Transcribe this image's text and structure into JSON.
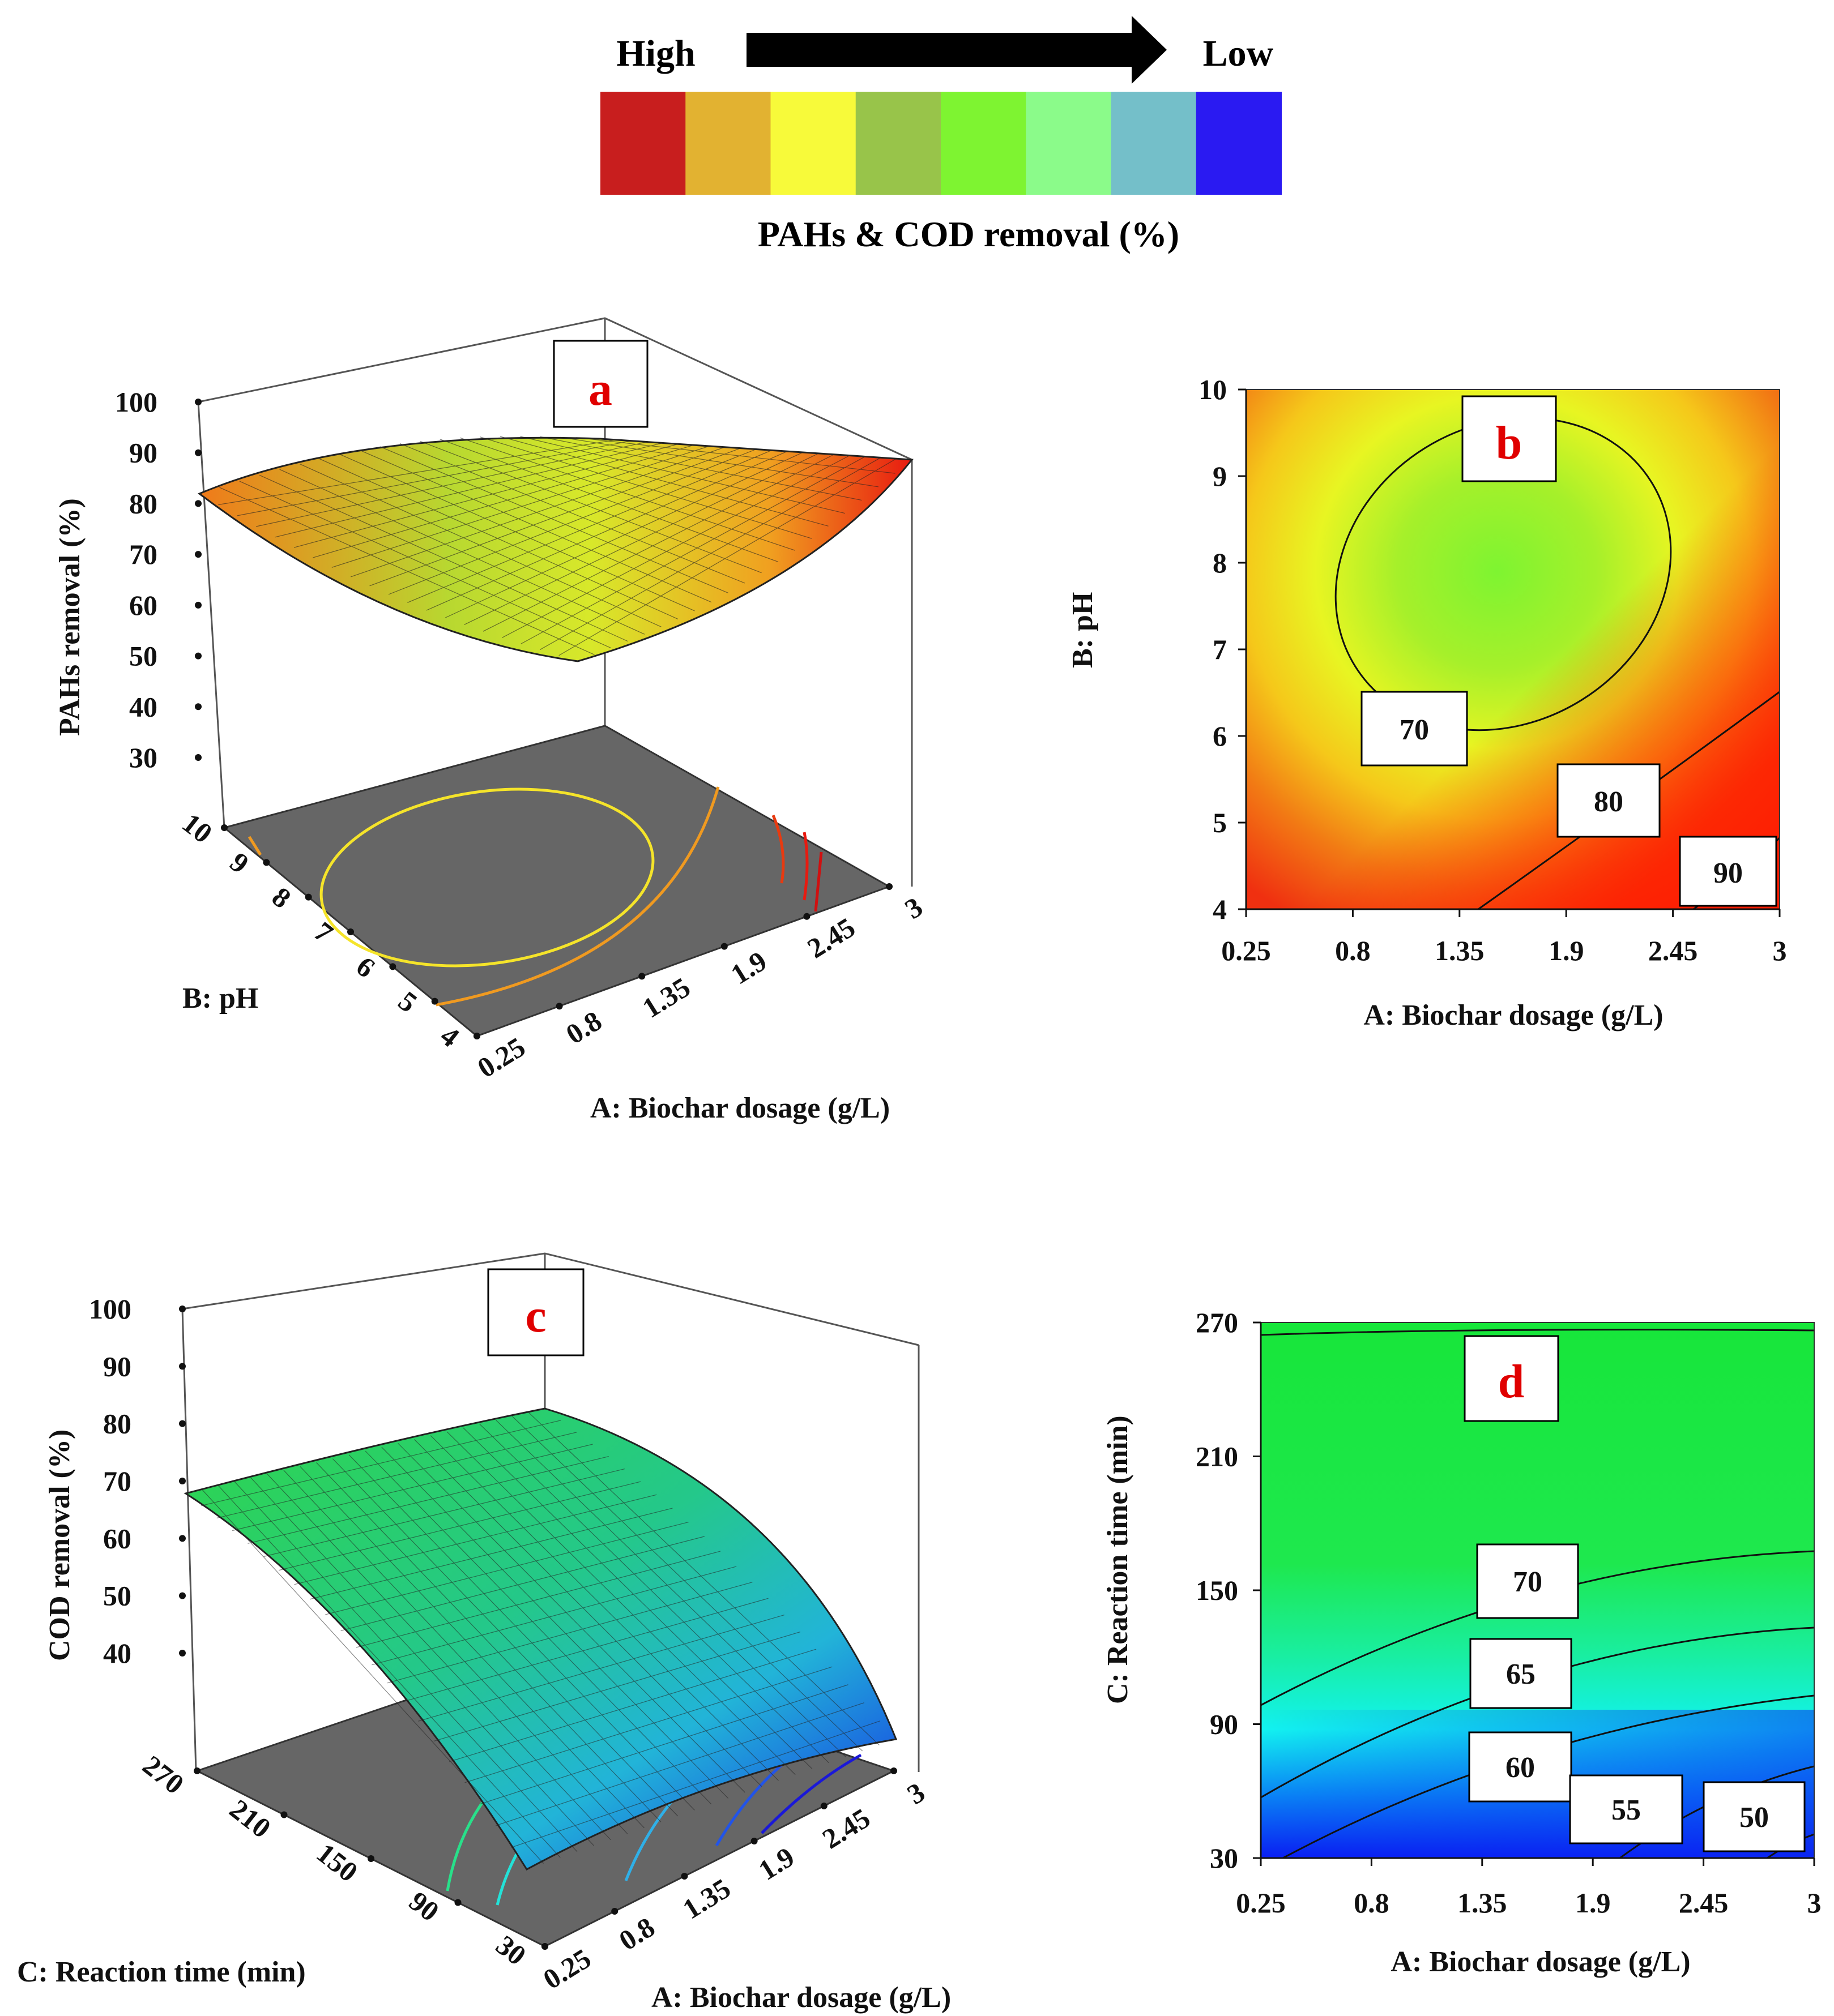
{
  "legend": {
    "high_label": "High",
    "low_label": "Low",
    "title": "PAHs & COD removal (%)",
    "colors": [
      "#c81e1e",
      "#e2b231",
      "#f7fa3a",
      "#98c44a",
      "#7ef431",
      "#8bfb8a",
      "#74bfc9",
      "#2a1af2"
    ]
  },
  "chart_data": [
    {
      "id": "a",
      "type": "surface3d",
      "panel_label": "a",
      "zlabel": "PAHs  removal (%)",
      "xlabel": "A: Biochar  dosage (g/L)",
      "ylabel": "B: pH",
      "x_ticks": [
        "0.25",
        "0.8",
        "1.35",
        "1.9",
        "2.45",
        "3"
      ],
      "y_ticks": [
        "10",
        "9",
        "8",
        "7",
        "6",
        "5",
        "4"
      ],
      "z_ticks": [
        "100",
        "90",
        "80",
        "70",
        "60",
        "50",
        "40",
        "30"
      ],
      "zlim": [
        30,
        100
      ],
      "xlim": [
        0.25,
        3
      ],
      "ylim": [
        4,
        10
      ],
      "surface_min": 67,
      "surface_max": 92
    },
    {
      "id": "b",
      "type": "contour",
      "panel_label": "b",
      "xlabel": "A: Biochar  dosage (g/L)",
      "ylabel": "B: pH",
      "x_ticks": [
        "0.25",
        "0.8",
        "1.35",
        "1.9",
        "2.45",
        "3"
      ],
      "y_ticks": [
        "10",
        "9",
        "8",
        "7",
        "6",
        "5",
        "4"
      ],
      "xlim": [
        0.25,
        3
      ],
      "ylim": [
        4,
        10
      ],
      "contour_levels": [
        70,
        80,
        90
      ],
      "contour_labels": [
        "70",
        "80",
        "90"
      ]
    },
    {
      "id": "c",
      "type": "surface3d",
      "panel_label": "c",
      "zlabel": "COD  removal (%)",
      "xlabel": "A: Biochar  dosage (g/L)",
      "ylabel": "C: Reaction time (min)",
      "x_ticks": [
        "0.25",
        "0.8",
        "1.35",
        "1.9",
        "2.45",
        "3"
      ],
      "y_ticks": [
        "270",
        "210",
        "150",
        "90",
        "30"
      ],
      "z_ticks": [
        "100",
        "90",
        "80",
        "70",
        "60",
        "50",
        "40"
      ],
      "zlim": [
        40,
        100
      ],
      "xlim": [
        0.25,
        3
      ],
      "ylim": [
        30,
        270
      ],
      "surface_min": 47,
      "surface_max": 78
    },
    {
      "id": "d",
      "type": "contour",
      "panel_label": "d",
      "xlabel": "A: Biochar  dosage (g/L)",
      "ylabel": "C: Reaction time (min)",
      "x_ticks": [
        "0.25",
        "0.8",
        "1.35",
        "1.9",
        "2.45",
        "3"
      ],
      "y_ticks": [
        "270",
        "210",
        "150",
        "90",
        "30"
      ],
      "xlim": [
        0.25,
        3
      ],
      "ylim": [
        30,
        270
      ],
      "contour_levels": [
        50,
        55,
        60,
        65,
        70
      ],
      "contour_labels": [
        "70",
        "65",
        "60",
        "55",
        "50"
      ]
    }
  ]
}
